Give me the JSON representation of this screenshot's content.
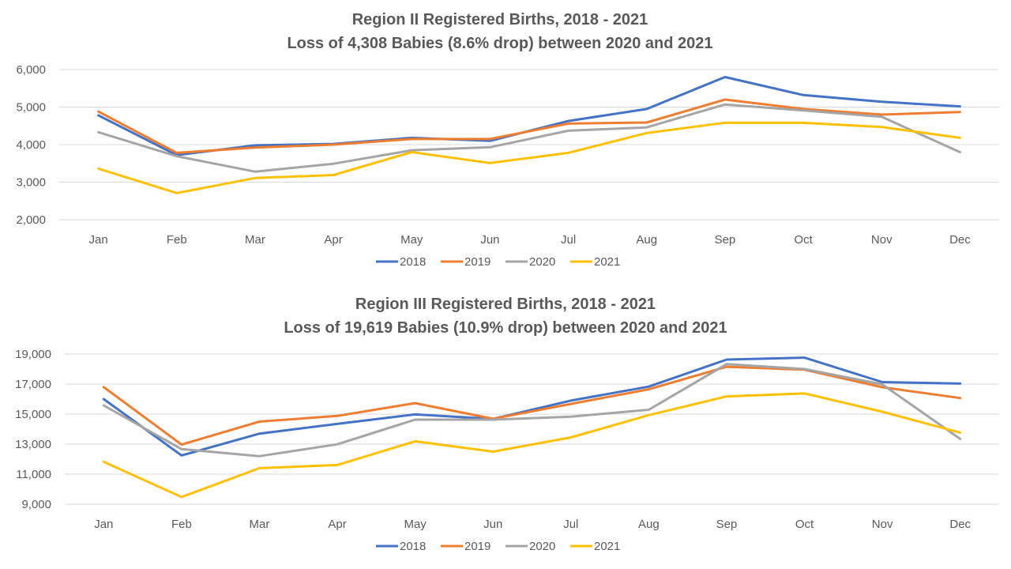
{
  "colors": {
    "2018": "#4472C4",
    "2019": "#ED7D31",
    "2020": "#A5A5A5",
    "2021": "#FFC000"
  },
  "chart_data": [
    {
      "type": "line",
      "title": "Region II Registered Births, 2018 - 2021",
      "subtitle": "Loss of 4,308 Babies (8.6% drop) between 2020 and 2021",
      "xlabel": "",
      "ylabel": "",
      "ylim": [
        2000,
        6000
      ],
      "yticks": [
        2000,
        3000,
        4000,
        5000,
        6000
      ],
      "ytick_labels": [
        "2,000",
        "3,000",
        "4,000",
        "5,000",
        "6,000"
      ],
      "grid": true,
      "legend": "bottom",
      "categories": [
        "Jan",
        "Feb",
        "Mar",
        "Apr",
        "May",
        "Jun",
        "Jul",
        "Aug",
        "Sep",
        "Oct",
        "Nov",
        "Dec"
      ],
      "series": [
        {
          "name": "2018",
          "values": [
            4780,
            3720,
            3980,
            4020,
            4180,
            4100,
            4630,
            4950,
            5800,
            5320,
            5140,
            5020
          ]
        },
        {
          "name": "2019",
          "values": [
            4880,
            3780,
            3920,
            4000,
            4150,
            4150,
            4560,
            4590,
            5200,
            4950,
            4800,
            4870
          ]
        },
        {
          "name": "2020",
          "values": [
            4330,
            3690,
            3280,
            3490,
            3850,
            3930,
            4370,
            4460,
            5070,
            4910,
            4740,
            3800
          ]
        },
        {
          "name": "2021",
          "values": [
            3360,
            2710,
            3110,
            3190,
            3800,
            3510,
            3780,
            4310,
            4580,
            4580,
            4470,
            4180
          ]
        }
      ]
    },
    {
      "type": "line",
      "title": "Region III Registered Births, 2018 - 2021",
      "subtitle": "Loss of 19,619 Babies (10.9% drop) between 2020 and 2021",
      "xlabel": "",
      "ylabel": "",
      "ylim": [
        9000,
        19000
      ],
      "yticks": [
        9000,
        11000,
        13000,
        15000,
        17000,
        19000
      ],
      "ytick_labels": [
        "9,000",
        "11,000",
        "13,000",
        "15,000",
        "17,000",
        "19,000"
      ],
      "grid": true,
      "legend": "bottom",
      "categories": [
        "Jan",
        "Feb",
        "Mar",
        "Apr",
        "May",
        "Jun",
        "Jul",
        "Aug",
        "Sep",
        "Oct",
        "Nov",
        "Dec"
      ],
      "series": [
        {
          "name": "2018",
          "values": [
            16000,
            12250,
            13700,
            14350,
            14980,
            14680,
            15900,
            16830,
            18630,
            18760,
            17130,
            17030
          ]
        },
        {
          "name": "2019",
          "values": [
            16800,
            12970,
            14500,
            14880,
            15730,
            14690,
            15680,
            16650,
            18150,
            17960,
            16790,
            16070
          ]
        },
        {
          "name": "2020",
          "values": [
            15580,
            12670,
            12200,
            12990,
            14630,
            14630,
            14830,
            15290,
            18330,
            18000,
            16980,
            13350
          ]
        },
        {
          "name": "2021",
          "values": [
            11820,
            9480,
            11400,
            11610,
            13190,
            12500,
            13450,
            14930,
            16180,
            16380,
            15160,
            13770
          ]
        }
      ]
    }
  ]
}
